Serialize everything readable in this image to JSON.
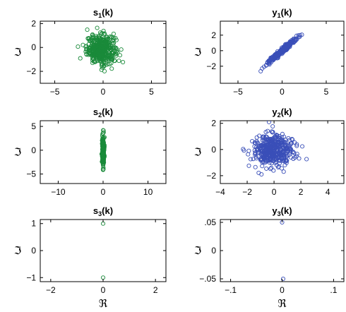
{
  "chart_data": [
    {
      "type": "scatter",
      "panel": "s1",
      "title": "s",
      "title_sub": "1",
      "title_suffix": "(k)",
      "ylabel": "ℑ",
      "xlabel": "",
      "xlim": [
        -6.5,
        6.5
      ],
      "ylim": [
        -3,
        2.2
      ],
      "xticks": [
        -5,
        0,
        5
      ],
      "yticks": [
        -2,
        0,
        2
      ],
      "color": "#1a8a3a",
      "grid": false,
      "cloud": {
        "shape": "blob",
        "center": [
          -0.2,
          -0.15
        ],
        "sx": 0.75,
        "sy": 0.6,
        "n": 420,
        "extent_x": [
          -2.6,
          2.6
        ],
        "extent_y": [
          -2.6,
          2.0
        ]
      }
    },
    {
      "type": "scatter",
      "panel": "y1",
      "title": "y",
      "title_sub": "1",
      "title_suffix": "(k)",
      "ylabel": "ℑ",
      "xlabel": "",
      "xlim": [
        -7,
        7
      ],
      "ylim": [
        -4.2,
        3.8
      ],
      "xticks": [
        -5,
        0,
        5
      ],
      "yticks": [
        -2,
        0,
        2
      ],
      "color": "#3a4fb8",
      "grid": false,
      "cloud": {
        "shape": "line",
        "slope": 1.0,
        "center": [
          0,
          0
        ],
        "sx": 0.8,
        "noise": 0.12,
        "n": 320,
        "extent_x": [
          -4.0,
          3.7
        ],
        "extent_y": [
          -3.9,
          3.6
        ]
      }
    },
    {
      "type": "scatter",
      "panel": "s2",
      "title": "s",
      "title_sub": "2",
      "title_suffix": "(k)",
      "ylabel": "ℑ",
      "xlabel": "",
      "xlim": [
        -14,
        14
      ],
      "ylim": [
        -7,
        6.2
      ],
      "xticks": [
        -10,
        0,
        10
      ],
      "yticks": [
        -5,
        0,
        5
      ],
      "color": "#1a8a3a",
      "grid": false,
      "cloud": {
        "shape": "vertical",
        "center": [
          0,
          -0.3
        ],
        "sx": 0.12,
        "sy": 1.7,
        "n": 220,
        "extent_x": [
          -0.3,
          0.3
        ],
        "extent_y": [
          -6.8,
          6.0
        ]
      }
    },
    {
      "type": "scatter",
      "panel": "y2",
      "title": "y",
      "title_sub": "2",
      "title_suffix": "(k)",
      "ylabel": "ℑ",
      "xlabel": "",
      "xlim": [
        -4,
        5.2
      ],
      "ylim": [
        -2.6,
        2.2
      ],
      "xticks": [
        -4,
        -2,
        0,
        2,
        4
      ],
      "yticks": [
        -2,
        0,
        2
      ],
      "color": "#3a4fb8",
      "grid": false,
      "cloud": {
        "shape": "blob",
        "center": [
          -0.1,
          -0.1
        ],
        "sx": 0.75,
        "sy": 0.62,
        "n": 430,
        "extent_x": [
          -2.3,
          3.3
        ],
        "extent_y": [
          -2.5,
          2.1
        ]
      }
    },
    {
      "type": "scatter",
      "panel": "s3",
      "title": "s",
      "title_sub": "3",
      "title_suffix": "(k)",
      "ylabel": "ℑ",
      "xlabel": "ℜ",
      "xlim": [
        -2.4,
        2.4
      ],
      "ylim": [
        -1.15,
        1.15
      ],
      "xticks": [
        -2,
        0,
        2
      ],
      "yticks": [
        -1,
        0,
        1
      ],
      "color": "#1a8a3a",
      "grid": false,
      "points": [
        [
          0,
          1
        ],
        [
          0,
          -1
        ]
      ]
    },
    {
      "type": "scatter",
      "panel": "y3",
      "title": "y",
      "title_sub": "3",
      "title_suffix": "(k)",
      "ylabel": "ℑ",
      "xlabel": "ℜ",
      "xlim": [
        -0.12,
        0.12
      ],
      "ylim": [
        -0.055,
        0.055
      ],
      "xticks": [
        -0.1,
        0,
        0.1
      ],
      "yticks": [
        -0.05,
        0,
        0.05
      ],
      "color": "#3a4fb8",
      "grid": false,
      "points": [
        [
          0,
          0.05
        ],
        [
          0.002,
          -0.05
        ]
      ]
    }
  ]
}
